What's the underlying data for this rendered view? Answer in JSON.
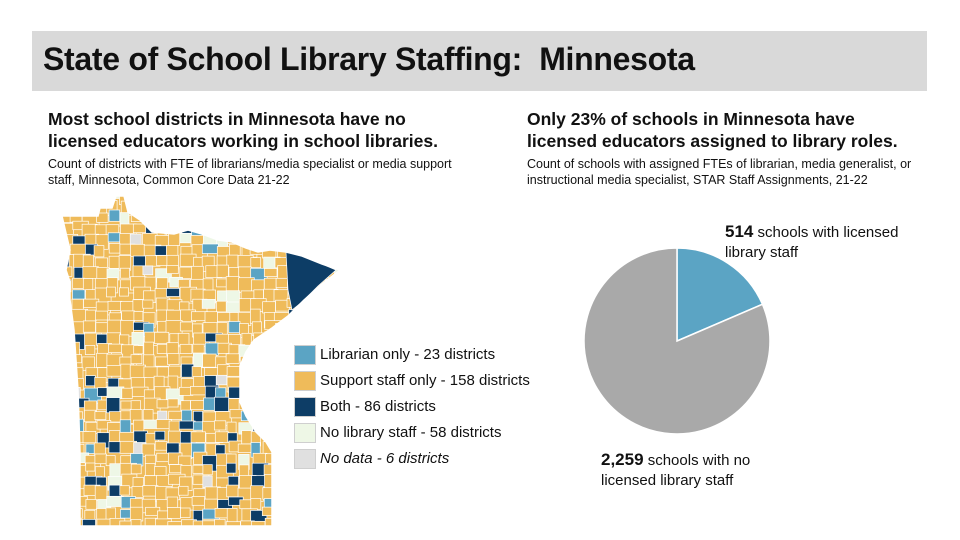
{
  "title": "State of School Library Staffing:  Minnesota",
  "left_panel": {
    "heading": "Most school districts in Minnesota have no licensed educators working in school libraries.",
    "subtitle": "Count of districts with FTE of librarians/media specialist or media support staff, Minnesota, Common Core Data 21-22"
  },
  "right_panel": {
    "heading": "Only 23% of schools in Minnesota have licensed educators assigned to library roles.",
    "subtitle": "Count of schools with assigned FTEs of librarian, media generalist, or instructional media specialist, STAR Staff Assignments, 21-22"
  },
  "chart_data": [
    {
      "type": "map",
      "legend": [
        {
          "label": "Librarian only - 23 districts",
          "count": 23,
          "color": "#5ba4c4",
          "italic": false
        },
        {
          "label": "Support staff only - 158 districts",
          "count": 158,
          "color": "#efbb5a",
          "italic": false
        },
        {
          "label": "Both - 86 districts",
          "count": 86,
          "color": "#0d3d66",
          "italic": false
        },
        {
          "label": "No library staff - 58 districts",
          "count": 58,
          "color": "#eef7e6",
          "italic": false
        },
        {
          "label": "No data - 6 districts",
          "count": 6,
          "color": "#e0e0e0",
          "italic": true
        }
      ]
    },
    {
      "type": "pie",
      "slices": [
        {
          "value": 514,
          "value_text": "514",
          "label": " schools with licensed library staff",
          "color": "#5ba4c4"
        },
        {
          "value": 2259,
          "value_text": "2,259",
          "label": " schools with no licensed library staff",
          "color": "#a9a9a9"
        }
      ]
    }
  ]
}
